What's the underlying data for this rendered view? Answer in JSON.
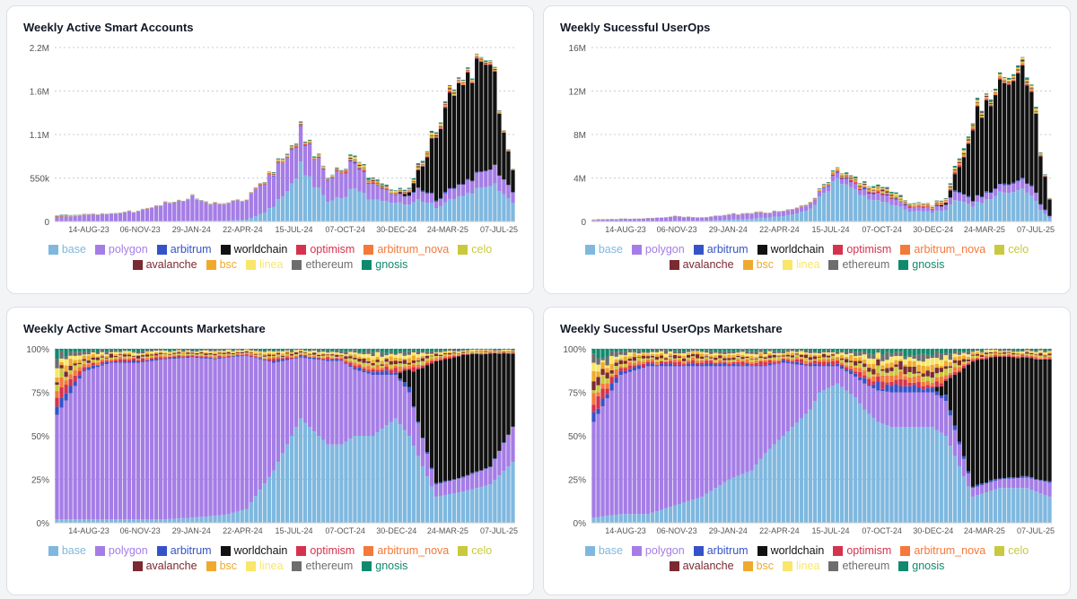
{
  "legend_items": [
    {
      "key": "base",
      "label": "base",
      "color": "#7fb8df"
    },
    {
      "key": "polygon",
      "label": "polygon",
      "color": "#a57de6"
    },
    {
      "key": "arbitrum",
      "label": "arbitrum",
      "color": "#3553c8"
    },
    {
      "key": "worldchain",
      "label": "worldchain",
      "color": "#111111"
    },
    {
      "key": "optimism",
      "label": "optimism",
      "color": "#d6324e"
    },
    {
      "key": "arbitrum_nova",
      "label": "arbitrum_nova",
      "color": "#f4793a"
    },
    {
      "key": "celo",
      "label": "celo",
      "color": "#c9c93e"
    },
    {
      "key": "avalanche",
      "label": "avalanche",
      "color": "#7a2a30"
    },
    {
      "key": "bsc",
      "label": "bsc",
      "color": "#efaa2d"
    },
    {
      "key": "linea",
      "label": "linea",
      "color": "#f9e66a"
    },
    {
      "key": "ethereum",
      "label": "ethereum",
      "color": "#6d6d6d"
    },
    {
      "key": "gnosis",
      "label": "gnosis",
      "color": "#108a6e"
    }
  ],
  "chart_data": [
    {
      "type": "bar",
      "stacked": true,
      "title": "Weekly Active Smart Accounts",
      "ylim": [
        0,
        2200000
      ],
      "yticks": [
        0,
        550000,
        1100000,
        1650000,
        2200000
      ],
      "ytick_labels": [
        "0",
        "550k",
        "1.1M",
        "1.6M",
        "2.2M"
      ],
      "xtick_labels": [
        "14-AUG-23",
        "06-NOV-23",
        "29-JAN-24",
        "22-APR-24",
        "15-JUL-24",
        "07-OCT-24",
        "30-DEC-24",
        "24-MAR-25",
        "07-JUL-25"
      ],
      "grid": true,
      "legend_position": "bottom",
      "series_keys": [
        "base",
        "polygon",
        "arbitrum",
        "worldchain",
        "optimism",
        "arbitrum_nova",
        "celo",
        "avalanche",
        "bsc",
        "linea",
        "ethereum",
        "gnosis"
      ],
      "anchor_weeks": [
        0,
        6,
        12,
        18,
        24,
        30,
        35,
        38,
        42,
        48,
        54,
        60,
        63,
        66,
        70,
        75,
        78,
        84,
        90,
        96,
        101
      ],
      "totals_k": [
        80,
        90,
        110,
        140,
        250,
        320,
        230,
        250,
        300,
        650,
        1200,
        600,
        680,
        850,
        550,
        420,
        450,
        1200,
        2000,
        2150,
        700
      ],
      "base_share": [
        0.02,
        0.02,
        0.02,
        0.02,
        0.02,
        0.03,
        0.04,
        0.05,
        0.08,
        0.3,
        0.6,
        0.45,
        0.45,
        0.5,
        0.5,
        0.6,
        0.5,
        0.15,
        0.18,
        0.22,
        0.35
      ],
      "polygon_share": [
        0.6,
        0.85,
        0.9,
        0.9,
        0.92,
        0.92,
        0.9,
        0.9,
        0.88,
        0.62,
        0.35,
        0.48,
        0.48,
        0.38,
        0.35,
        0.25,
        0.25,
        0.07,
        0.08,
        0.1,
        0.2
      ],
      "worldchain_share": [
        0,
        0,
        0,
        0,
        0,
        0,
        0,
        0,
        0,
        0,
        0,
        0,
        0,
        0,
        0,
        0,
        0.1,
        0.7,
        0.7,
        0.65,
        0.42
      ]
    },
    {
      "type": "bar",
      "stacked": true,
      "title": "Weekly Sucessful UserOps",
      "ylim": [
        0,
        16000000
      ],
      "yticks": [
        0,
        4000000,
        8000000,
        12000000,
        16000000
      ],
      "ytick_labels": [
        "0",
        "4M",
        "8M",
        "12M",
        "16M"
      ],
      "xtick_labels": [
        "14-AUG-23",
        "06-NOV-23",
        "29-JAN-24",
        "22-APR-24",
        "15-JUL-24",
        "07-OCT-24",
        "30-DEC-24",
        "24-MAR-25",
        "07-JUL-25"
      ],
      "grid": true,
      "legend_position": "bottom",
      "series_keys": [
        "base",
        "polygon",
        "arbitrum",
        "worldchain",
        "optimism",
        "arbitrum_nova",
        "celo",
        "avalanche",
        "bsc",
        "linea",
        "ethereum",
        "gnosis"
      ],
      "anchor_weeks": [
        0,
        6,
        12,
        18,
        24,
        30,
        35,
        38,
        42,
        48,
        50,
        54,
        58,
        60,
        63,
        66,
        70,
        75,
        78,
        84,
        90,
        96,
        101
      ],
      "totals_k": [
        200,
        250,
        300,
        500,
        400,
        700,
        800,
        900,
        1000,
        1800,
        3000,
        5000,
        4000,
        3500,
        3200,
        3000,
        1800,
        1600,
        2200,
        10000,
        13500,
        15000,
        2000
      ],
      "base_share": [
        0.03,
        0.05,
        0.05,
        0.1,
        0.15,
        0.25,
        0.3,
        0.4,
        0.5,
        0.65,
        0.75,
        0.8,
        0.72,
        0.65,
        0.58,
        0.55,
        0.55,
        0.55,
        0.5,
        0.15,
        0.2,
        0.2,
        0.15
      ],
      "polygon_share": [
        0.55,
        0.8,
        0.85,
        0.8,
        0.75,
        0.65,
        0.6,
        0.5,
        0.42,
        0.25,
        0.15,
        0.1,
        0.12,
        0.15,
        0.18,
        0.2,
        0.2,
        0.2,
        0.2,
        0.05,
        0.05,
        0.06,
        0.08
      ],
      "worldchain_share": [
        0,
        0,
        0,
        0,
        0,
        0,
        0,
        0,
        0,
        0,
        0,
        0,
        0,
        0,
        0,
        0,
        0,
        0,
        0.08,
        0.72,
        0.7,
        0.68,
        0.7
      ]
    },
    {
      "type": "bar",
      "stacked": true,
      "normalized": true,
      "title": "Weekly Active Smart Accounts Marketshare",
      "ylim": [
        0,
        100
      ],
      "yticks": [
        0,
        25,
        50,
        75,
        100
      ],
      "ytick_labels": [
        "0%",
        "25%",
        "50%",
        "75%",
        "100%"
      ],
      "xtick_labels": [
        "14-AUG-23",
        "06-NOV-23",
        "29-JAN-24",
        "22-APR-24",
        "15-JUL-24",
        "07-OCT-24",
        "30-DEC-24",
        "24-MAR-25",
        "07-JUL-25"
      ],
      "grid": true,
      "legend_position": "bottom",
      "series_keys": [
        "base",
        "polygon",
        "arbitrum",
        "worldchain",
        "optimism",
        "arbitrum_nova",
        "celo",
        "avalanche",
        "bsc",
        "linea",
        "ethereum",
        "gnosis"
      ],
      "anchor_weeks": [
        0,
        6,
        12,
        18,
        24,
        30,
        35,
        38,
        42,
        48,
        54,
        60,
        63,
        66,
        70,
        75,
        78,
        84,
        90,
        96,
        101
      ],
      "base_share": [
        0.02,
        0.02,
        0.02,
        0.02,
        0.02,
        0.03,
        0.04,
        0.05,
        0.08,
        0.3,
        0.6,
        0.45,
        0.45,
        0.5,
        0.5,
        0.6,
        0.5,
        0.15,
        0.18,
        0.22,
        0.35
      ],
      "polygon_share": [
        0.6,
        0.85,
        0.9,
        0.9,
        0.92,
        0.92,
        0.9,
        0.9,
        0.88,
        0.62,
        0.35,
        0.48,
        0.48,
        0.38,
        0.35,
        0.25,
        0.25,
        0.07,
        0.08,
        0.1,
        0.2
      ],
      "worldchain_share": [
        0,
        0,
        0,
        0,
        0,
        0,
        0,
        0,
        0,
        0,
        0,
        0,
        0,
        0,
        0,
        0,
        0.1,
        0.7,
        0.7,
        0.65,
        0.42
      ]
    },
    {
      "type": "bar",
      "stacked": true,
      "normalized": true,
      "title": "Weekly Sucessful UserOps Marketshare",
      "ylim": [
        0,
        100
      ],
      "yticks": [
        0,
        25,
        50,
        75,
        100
      ],
      "ytick_labels": [
        "0%",
        "25%",
        "50%",
        "75%",
        "100%"
      ],
      "xtick_labels": [
        "14-AUG-23",
        "06-NOV-23",
        "29-JAN-24",
        "22-APR-24",
        "15-JUL-24",
        "07-OCT-24",
        "30-DEC-24",
        "24-MAR-25",
        "07-JUL-25"
      ],
      "grid": true,
      "legend_position": "bottom",
      "series_keys": [
        "base",
        "polygon",
        "arbitrum",
        "worldchain",
        "optimism",
        "arbitrum_nova",
        "celo",
        "avalanche",
        "bsc",
        "linea",
        "ethereum",
        "gnosis"
      ],
      "anchor_weeks": [
        0,
        6,
        12,
        18,
        24,
        30,
        35,
        38,
        42,
        48,
        50,
        54,
        58,
        60,
        63,
        66,
        70,
        75,
        78,
        84,
        90,
        96,
        101
      ],
      "base_share": [
        0.03,
        0.05,
        0.05,
        0.1,
        0.15,
        0.25,
        0.3,
        0.4,
        0.5,
        0.65,
        0.75,
        0.8,
        0.72,
        0.65,
        0.58,
        0.55,
        0.55,
        0.55,
        0.5,
        0.15,
        0.2,
        0.2,
        0.15
      ],
      "polygon_share": [
        0.55,
        0.8,
        0.85,
        0.8,
        0.75,
        0.65,
        0.6,
        0.5,
        0.42,
        0.25,
        0.15,
        0.1,
        0.12,
        0.15,
        0.18,
        0.2,
        0.2,
        0.2,
        0.2,
        0.05,
        0.05,
        0.06,
        0.08
      ],
      "worldchain_share": [
        0,
        0,
        0,
        0,
        0,
        0,
        0,
        0,
        0,
        0,
        0,
        0,
        0,
        0,
        0,
        0,
        0,
        0,
        0.08,
        0.72,
        0.7,
        0.68,
        0.7
      ]
    }
  ]
}
